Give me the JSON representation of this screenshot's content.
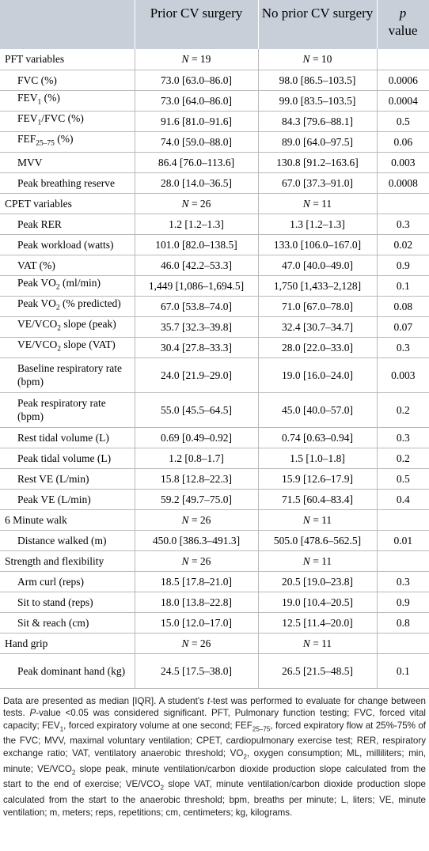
{
  "header": {
    "col1": "",
    "col2": "Prior CV surgery",
    "col3": "No prior CV surgery",
    "col4_p": "p",
    "col4_rest": "value"
  },
  "rows": [
    {
      "type": "section",
      "label": "PFT variables",
      "a": "N = 19",
      "b": "N = 10",
      "p": ""
    },
    {
      "type": "row",
      "label": "FVC (%)",
      "a": "73.0 [63.0–86.0]",
      "b": "98.0 [86.5–103.5]",
      "p": "0.0006"
    },
    {
      "type": "row",
      "label": "FEV1 (%)",
      "a": "73.0 [64.0–86.0]",
      "b": "99.0 [83.5–103.5]",
      "p": "0.0004"
    },
    {
      "type": "row",
      "label": "FEV1/FVC (%)",
      "a": "91.6 [81.0–91.6]",
      "b": "84.3 [79.6–88.1]",
      "p": "0.5"
    },
    {
      "type": "row",
      "label": "FEF25–75 (%)",
      "a": "74.0 [59.0–88.0]",
      "b": "89.0 [64.0–97.5]",
      "p": "0.06"
    },
    {
      "type": "row",
      "label": "MVV",
      "a": "86.4 [76.0–113.6]",
      "b": "130.8 [91.2–163.6]",
      "p": "0.003"
    },
    {
      "type": "row",
      "label": "Peak breathing reserve",
      "a": "28.0 [14.0–36.5]",
      "b": "67.0 [37.3–91.0]",
      "p": "0.0008"
    },
    {
      "type": "section",
      "label": "CPET variables",
      "a": "N = 26",
      "b": "N = 11",
      "p": ""
    },
    {
      "type": "row",
      "label": "Peak RER",
      "a": "1.2 [1.2–1.3]",
      "b": "1.3 [1.2–1.3]",
      "p": "0.3"
    },
    {
      "type": "row",
      "label": "Peak workload (watts)",
      "a": "101.0 [82.0–138.5]",
      "b": "133.0 [106.0–167.0]",
      "p": "0.02"
    },
    {
      "type": "row",
      "label": "VAT (%)",
      "a": "46.0 [42.2–53.3]",
      "b": "47.0 [40.0–49.0]",
      "p": "0.9"
    },
    {
      "type": "row",
      "label": "Peak VO2 (ml/min)",
      "a": "1,449 [1,086–1,694.5]",
      "b": "1,750 [1,433–2,128]",
      "p": "0.1"
    },
    {
      "type": "row",
      "label": "Peak VO2 (% predicted)",
      "a": "67.0 [53.8–74.0]",
      "b": "71.0 [67.0–78.0]",
      "p": "0.08"
    },
    {
      "type": "row",
      "label": "VE/VCO2 slope (peak)",
      "a": "35.7 [32.3–39.8]",
      "b": "32.4 [30.7–34.7]",
      "p": "0.07"
    },
    {
      "type": "row",
      "label": "VE/VCO2 slope (VAT)",
      "a": "30.4 [27.8–33.3]",
      "b": "28.0 [22.0–33.0]",
      "p": "0.3"
    },
    {
      "type": "tall",
      "label": "Baseline respiratory rate (bpm)",
      "a": "24.0 [21.9–29.0]",
      "b": "19.0 [16.0–24.0]",
      "p": "0.003"
    },
    {
      "type": "tall",
      "label": "Peak respiratory rate (bpm)",
      "a": "55.0 [45.5–64.5]",
      "b": "45.0 [40.0–57.0]",
      "p": "0.2"
    },
    {
      "type": "row",
      "label": "Rest tidal volume (L)",
      "a": "0.69 [0.49–0.92]",
      "b": "0.74 [0.63–0.94]",
      "p": "0.3"
    },
    {
      "type": "row",
      "label": "Peak tidal volume (L)",
      "a": "1.2 [0.8–1.7]",
      "b": "1.5 [1.0–1.8]",
      "p": "0.2"
    },
    {
      "type": "row",
      "label": "Rest VE (L/min)",
      "a": "15.8 [12.8–22.3]",
      "b": "15.9 [12.6–17.9]",
      "p": "0.5"
    },
    {
      "type": "row",
      "label": "Peak VE (L/min)",
      "a": "59.2 [49.7–75.0]",
      "b": "71.5 [60.4–83.4]",
      "p": "0.4"
    },
    {
      "type": "section",
      "label": "6 Minute walk",
      "a": "N = 26",
      "b": "N = 11",
      "p": ""
    },
    {
      "type": "row",
      "label": "Distance walked (m)",
      "a": "450.0 [386.3–491.3]",
      "b": "505.0 [478.6–562.5]",
      "p": "0.01"
    },
    {
      "type": "section",
      "label": "Strength and flexibility",
      "a": "N = 26",
      "b": "N = 11",
      "p": ""
    },
    {
      "type": "row",
      "label": "Arm curl (reps)",
      "a": "18.5 [17.8–21.0]",
      "b": "20.5 [19.0–23.8]",
      "p": "0.3"
    },
    {
      "type": "row",
      "label": "Sit to stand (reps)",
      "a": "18.0 [13.8–22.8]",
      "b": "19.0 [10.4–20.5]",
      "p": "0.9"
    },
    {
      "type": "row",
      "label": "Sit & reach (cm)",
      "a": "15.0 [12.0–17.0]",
      "b": "12.5 [11.4–20.0]",
      "p": "0.8"
    },
    {
      "type": "section",
      "label": "Hand grip",
      "a": "N = 26",
      "b": "N = 11",
      "p": ""
    },
    {
      "type": "tall",
      "label": "Peak dominant hand (kg)",
      "a": "24.5 [17.5–38.0]",
      "b": "26.5 [21.5–48.5]",
      "p": "0.1"
    }
  ],
  "footnote": "Data are presented as median [IQR]. A student's t-test was performed to evaluate for change between tests. P-value <0.05 was considered significant. PFT, Pulmonary function testing; FVC, forced vital capacity; FEV1, forced expiratory volume at one second; FEF25–75, forced expiratory flow at 25%-75% of the FVC; MVV, maximal voluntary ventilation; CPET, cardiopulmonary exercise test; RER, respiratory exchange ratio; VAT, ventilatory anaerobic threshold; VO2, oxygen consumption; ML, milliliters; min, minute; VE/VCO2 slope peak, minute ventilation/carbon dioxide production slope calculated from the start to the end of exercise; VE/VCO2 slope VAT, minute ventilation/carbon dioxide production slope calculated from the start to the anaerobic threshold; bpm, breaths per minute; L, liters; VE, minute ventilation; m, meters; reps, repetitions; cm, centimeters; kg, kilograms."
}
